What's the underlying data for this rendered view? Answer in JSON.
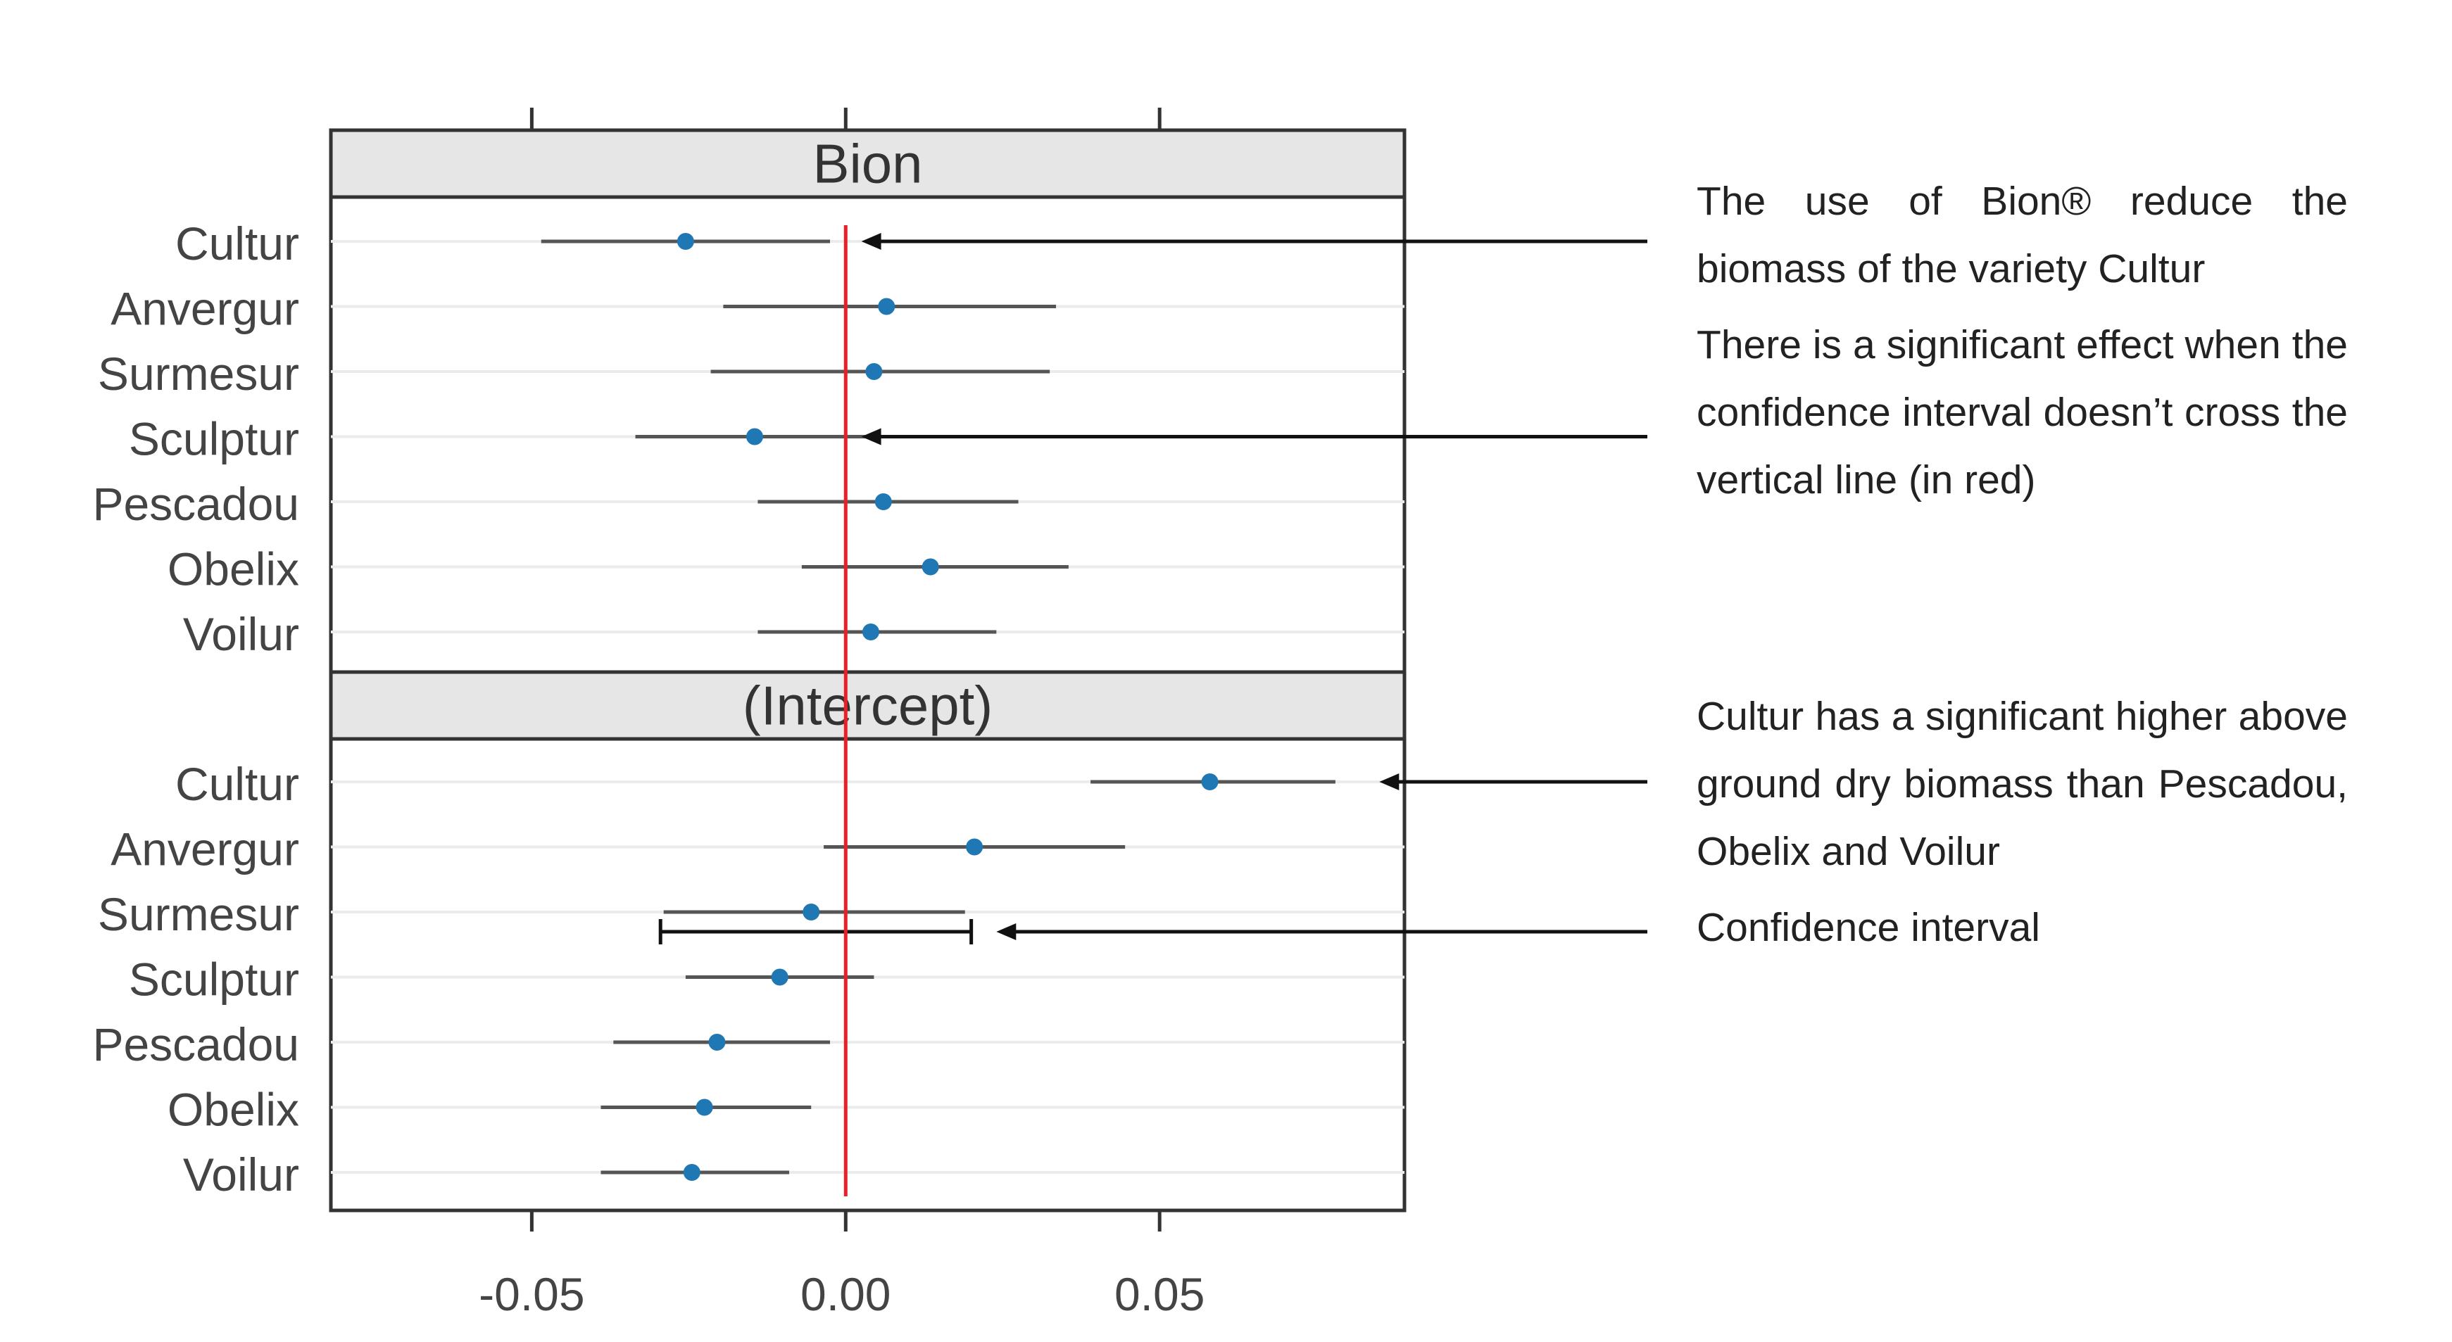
{
  "chart_data": {
    "type": "forest",
    "x_ticks": [
      "-0.05",
      "0.00",
      "0.05"
    ],
    "x_tick_values": [
      -0.05,
      0.0,
      0.05
    ],
    "xlim": [
      -0.082,
      0.089
    ],
    "reference_line": {
      "x": 0.0,
      "color": "#e8202a"
    },
    "point_color": "#1f77b4",
    "ci_color": "#555555",
    "panels": [
      {
        "title": "Bion",
        "rows": [
          {
            "label": "Cultur",
            "estimate": -0.0255,
            "lower": -0.0485,
            "upper": -0.0025
          },
          {
            "label": "Anvergur",
            "estimate": 0.0065,
            "lower": -0.0195,
            "upper": 0.0335
          },
          {
            "label": "Surmesur",
            "estimate": 0.0045,
            "lower": -0.0215,
            "upper": 0.0325
          },
          {
            "label": "Sculptur",
            "estimate": -0.0145,
            "lower": -0.0335,
            "upper": 0.0055
          },
          {
            "label": "Pescadou",
            "estimate": 0.006,
            "lower": -0.014,
            "upper": 0.0275
          },
          {
            "label": "Obelix",
            "estimate": 0.0135,
            "lower": -0.007,
            "upper": 0.0355
          },
          {
            "label": "Voilur",
            "estimate": 0.004,
            "lower": -0.014,
            "upper": 0.024
          }
        ]
      },
      {
        "title": "(Intercept)",
        "rows": [
          {
            "label": "Cultur",
            "estimate": 0.058,
            "lower": 0.039,
            "upper": 0.078
          },
          {
            "label": "Anvergur",
            "estimate": 0.0205,
            "lower": -0.0035,
            "upper": 0.0445
          },
          {
            "label": "Surmesur",
            "estimate": -0.0055,
            "lower": -0.029,
            "upper": 0.019
          },
          {
            "label": "Sculptur",
            "estimate": -0.0105,
            "lower": -0.0255,
            "upper": 0.0045
          },
          {
            "label": "Pescadou",
            "estimate": -0.0205,
            "lower": -0.037,
            "upper": -0.0025
          },
          {
            "label": "Obelix",
            "estimate": -0.0225,
            "lower": -0.039,
            "upper": -0.0055
          },
          {
            "label": "Voilur",
            "estimate": -0.0245,
            "lower": -0.039,
            "upper": -0.009
          }
        ]
      }
    ],
    "ci_example": {
      "lower": -0.0295,
      "upper": 0.02,
      "color": "#111111"
    },
    "annotations": [
      {
        "text": "The use of Bion® reduce the biomass of the variety Cultur",
        "arrow_target": {
          "panel": 0,
          "row": 0,
          "x": 0.0025
        }
      },
      {
        "text": "There is a significant effect when the confidence interval doesn’t cross the vertical line (in red)",
        "arrow_target": {
          "panel": 0,
          "row": 3,
          "x": 0.0025
        }
      },
      {
        "text": "Cultur has a significant higher above ground dry biomass than Pescadou, Obelix and Voilur",
        "arrow_target": {
          "panel": 1,
          "row": 0,
          "x": 0.085
        }
      },
      {
        "text": "Confidence interval",
        "arrow_target": {
          "panel": 1,
          "row": 2,
          "x": 0.024
        }
      }
    ]
  }
}
